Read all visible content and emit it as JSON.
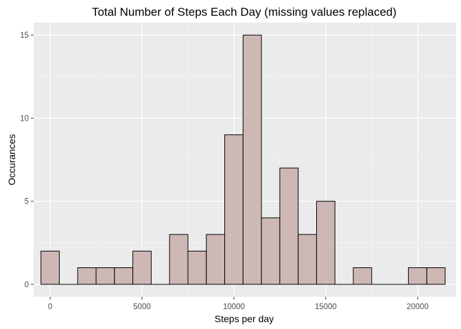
{
  "chart_data": {
    "type": "bar",
    "title": "Total Number of Steps Each Day (missing values replaced)",
    "xlabel": "Steps per day",
    "ylabel": "Occurances",
    "xlim": [
      -900,
      22100
    ],
    "ylim": [
      -0.75,
      15.75
    ],
    "bin_width": 1000,
    "bins": [
      {
        "x_start": -500,
        "x_end": 500,
        "count": 2
      },
      {
        "x_start": 500,
        "x_end": 1500,
        "count": 0
      },
      {
        "x_start": 1500,
        "x_end": 2500,
        "count": 1
      },
      {
        "x_start": 2500,
        "x_end": 3500,
        "count": 1
      },
      {
        "x_start": 3500,
        "x_end": 4500,
        "count": 1
      },
      {
        "x_start": 4500,
        "x_end": 5500,
        "count": 2
      },
      {
        "x_start": 5500,
        "x_end": 6500,
        "count": 0
      },
      {
        "x_start": 6500,
        "x_end": 7500,
        "count": 3
      },
      {
        "x_start": 7500,
        "x_end": 8500,
        "count": 2
      },
      {
        "x_start": 8500,
        "x_end": 9500,
        "count": 3
      },
      {
        "x_start": 9500,
        "x_end": 10500,
        "count": 9
      },
      {
        "x_start": 10500,
        "x_end": 11500,
        "count": 15
      },
      {
        "x_start": 11500,
        "x_end": 12500,
        "count": 4
      },
      {
        "x_start": 12500,
        "x_end": 13500,
        "count": 7
      },
      {
        "x_start": 13500,
        "x_end": 14500,
        "count": 3
      },
      {
        "x_start": 14500,
        "x_end": 15500,
        "count": 5
      },
      {
        "x_start": 15500,
        "x_end": 16500,
        "count": 0
      },
      {
        "x_start": 16500,
        "x_end": 17500,
        "count": 1
      },
      {
        "x_start": 17500,
        "x_end": 18500,
        "count": 0
      },
      {
        "x_start": 18500,
        "x_end": 19500,
        "count": 0
      },
      {
        "x_start": 19500,
        "x_end": 20500,
        "count": 1
      },
      {
        "x_start": 20500,
        "x_end": 21500,
        "count": 1
      }
    ],
    "x_ticks": [
      0,
      5000,
      10000,
      15000,
      20000
    ],
    "x_tick_labels": [
      "0",
      "5000",
      "10000",
      "15000",
      "20000"
    ],
    "y_ticks": [
      0,
      5,
      10,
      15
    ],
    "y_tick_labels": [
      "0",
      "5",
      "10",
      "15"
    ],
    "grid": true,
    "colors": {
      "bar_fill": "#cdb8b5",
      "bar_stroke": "#000000",
      "panel_background": "#ebebeb",
      "grid_major": "#ffffff",
      "grid_minor": "#f5f5f5"
    }
  }
}
